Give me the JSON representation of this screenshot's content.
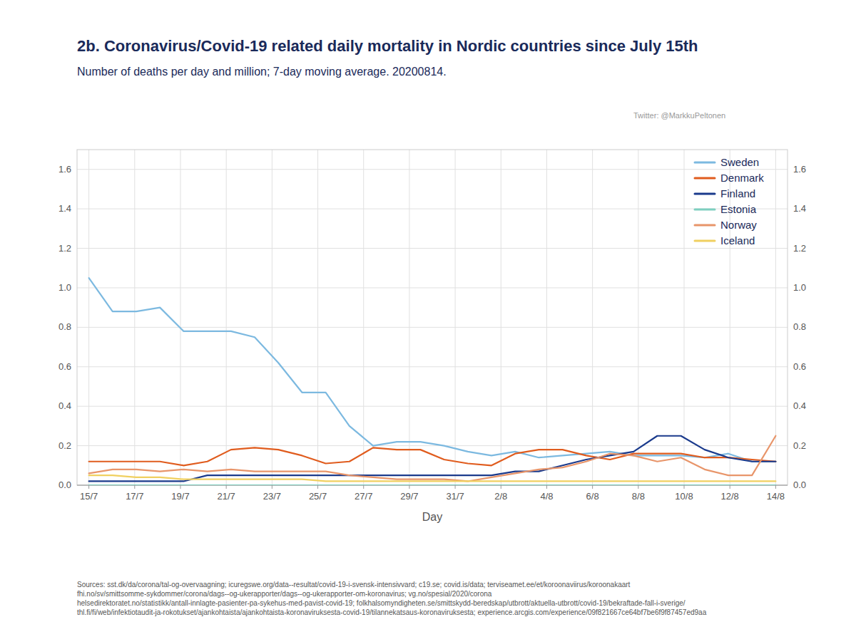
{
  "chart_data": {
    "type": "line",
    "title": "2b. Coronavirus/Covid-19 related daily mortality in Nordic countries since July 15th",
    "subtitle": "Number of deaths per day and million; 7-day moving average. 20200814.",
    "annotations": [
      "Twitter: @MarkkuPeltonen",
      "Sources: sst.dk/da/corona/tal-og-overvaagning; icuregswe.org/data--resultat/covid-19-i-svensk-intensivvard; c19.se; covid.is/data;  terviseamet.ee/et/koroonaviirus/koroonakaart\nfhi.no/sv/smittsomme-sykdommer/corona/dags--og-ukerapporter/dags--og-ukerapporter-om-koronavirus; vg.no/spesial/2020/corona\nhelsedirektoratet.no/statistikk/antall-innlagte-pasienter-pa-sykehus-med-pavist-covid-19; folkhalsomyndigheten.se/smittskydd-beredskap/utbrott/aktuella-utbrott/covid-19/bekraftade-fall-i-sverige/\nthl.fi/fi/web/infektiotaudit-ja-rokotukset/ajankohtaista/ajankohtaista-koronaviruksesta-covid-19/tilannekatsaus-koronaviruksesta; experience.arcgis.com/experience/09f821667ce64bf7be6f9f87457ed9aa"
    ],
    "x_label": "Day",
    "x": [
      0,
      1,
      2,
      3,
      4,
      5,
      6,
      7,
      8,
      9,
      10,
      11,
      12,
      13,
      14,
      15,
      16,
      17,
      18,
      19,
      20,
      21,
      22,
      23,
      24,
      25,
      26,
      27,
      28,
      29
    ],
    "xlim": [
      -0.5,
      29.5
    ],
    "xticks": [
      {
        "value": 0,
        "label": "15/7"
      },
      {
        "value": 1.9333333333333333,
        "label": "17/7"
      },
      {
        "value": 3.8666666666666667,
        "label": "19/7"
      },
      {
        "value": 5.8,
        "label": "21/7"
      },
      {
        "value": 7.733333333333333,
        "label": "23/7"
      },
      {
        "value": 9.666666666666666,
        "label": "25/7"
      },
      {
        "value": 11.6,
        "label": "27/7"
      },
      {
        "value": 13.533333333333333,
        "label": "29/7"
      },
      {
        "value": 15.466666666666667,
        "label": "31/7"
      },
      {
        "value": 17.4,
        "label": "2/8"
      },
      {
        "value": 19.333333333333332,
        "label": "4/8"
      },
      {
        "value": 21.266666666666666,
        "label": "6/8"
      },
      {
        "value": 23.2,
        "label": "8/8"
      },
      {
        "value": 25.133333333333333,
        "label": "10/8"
      },
      {
        "value": 27.066666666666666,
        "label": "12/8"
      },
      {
        "value": 29,
        "label": "14/8"
      }
    ],
    "ylim": [
      0.0,
      1.7
    ],
    "yticks": [
      {
        "value": 0,
        "label": "0.0"
      },
      0.2,
      0.4,
      0.6,
      0.8,
      {
        "value": 1,
        "label": "1.0"
      },
      1.2,
      1.4,
      1.6
    ],
    "y2lim": [
      0.0,
      1.7
    ],
    "y2ticks": [
      {
        "value": 0,
        "label": "0.0"
      },
      0.2,
      0.4,
      0.6,
      0.8,
      {
        "value": 1,
        "label": "1.0"
      },
      1.2,
      1.4,
      1.6
    ],
    "grid": true,
    "legend": "upper right",
    "series": [
      {
        "name": "Sweden",
        "color": "#7cb9e0",
        "values": [
          1.05,
          0.88,
          0.88,
          0.9,
          0.78,
          0.78,
          0.78,
          0.75,
          0.62,
          0.47,
          0.47,
          0.3,
          0.2,
          0.22,
          0.22,
          0.2,
          0.17,
          0.15,
          0.17,
          0.14,
          0.15,
          0.16,
          0.17,
          0.15,
          0.15,
          0.15,
          0.14,
          0.16,
          0.12,
          0.12
        ]
      },
      {
        "name": "Denmark",
        "color": "#e05c1e",
        "values": [
          0.12,
          0.12,
          0.12,
          0.12,
          0.1,
          0.12,
          0.18,
          0.19,
          0.18,
          0.15,
          0.11,
          0.12,
          0.19,
          0.18,
          0.18,
          0.13,
          0.11,
          0.1,
          0.16,
          0.18,
          0.18,
          0.15,
          0.13,
          0.16,
          0.16,
          0.16,
          0.14,
          0.14,
          0.13,
          0.12
        ]
      },
      {
        "name": "Finland",
        "color": "#1a3a8c",
        "values": [
          0.02,
          0.02,
          0.02,
          0.02,
          0.02,
          0.05,
          0.05,
          0.05,
          0.05,
          0.05,
          0.05,
          0.05,
          0.05,
          0.05,
          0.05,
          0.05,
          0.05,
          0.05,
          0.07,
          0.07,
          0.1,
          0.13,
          0.15,
          0.17,
          0.25,
          0.25,
          0.18,
          0.14,
          0.12,
          0.12
        ]
      },
      {
        "name": "Estonia",
        "color": "#7ecfc0",
        "values": [
          0.0,
          0.0,
          0.0,
          0.0,
          0.0,
          0.0,
          0.0,
          0.0,
          0.0,
          0.0,
          0.0,
          0.0,
          0.0,
          0.0,
          0.0,
          0.0,
          0.0,
          0.0,
          0.0,
          0.0,
          0.0,
          0.0,
          0.0,
          0.0,
          0.0,
          0.0,
          0.0,
          0.0,
          0.0,
          0.0
        ]
      },
      {
        "name": "Norway",
        "color": "#e8956a",
        "values": [
          0.06,
          0.08,
          0.08,
          0.07,
          0.08,
          0.07,
          0.08,
          0.07,
          0.07,
          0.07,
          0.07,
          0.05,
          0.04,
          0.03,
          0.03,
          0.03,
          0.02,
          0.04,
          0.06,
          0.08,
          0.09,
          0.12,
          0.16,
          0.15,
          0.12,
          0.14,
          0.08,
          0.05,
          0.05,
          0.25
        ]
      },
      {
        "name": "Iceland",
        "color": "#f0d060",
        "values": [
          0.05,
          0.05,
          0.04,
          0.04,
          0.03,
          0.03,
          0.03,
          0.03,
          0.03,
          0.03,
          0.02,
          0.02,
          0.02,
          0.02,
          0.02,
          0.02,
          0.02,
          0.02,
          0.02,
          0.02,
          0.02,
          0.02,
          0.02,
          0.02,
          0.02,
          0.02,
          0.02,
          0.02,
          0.02,
          0.02
        ]
      }
    ]
  }
}
